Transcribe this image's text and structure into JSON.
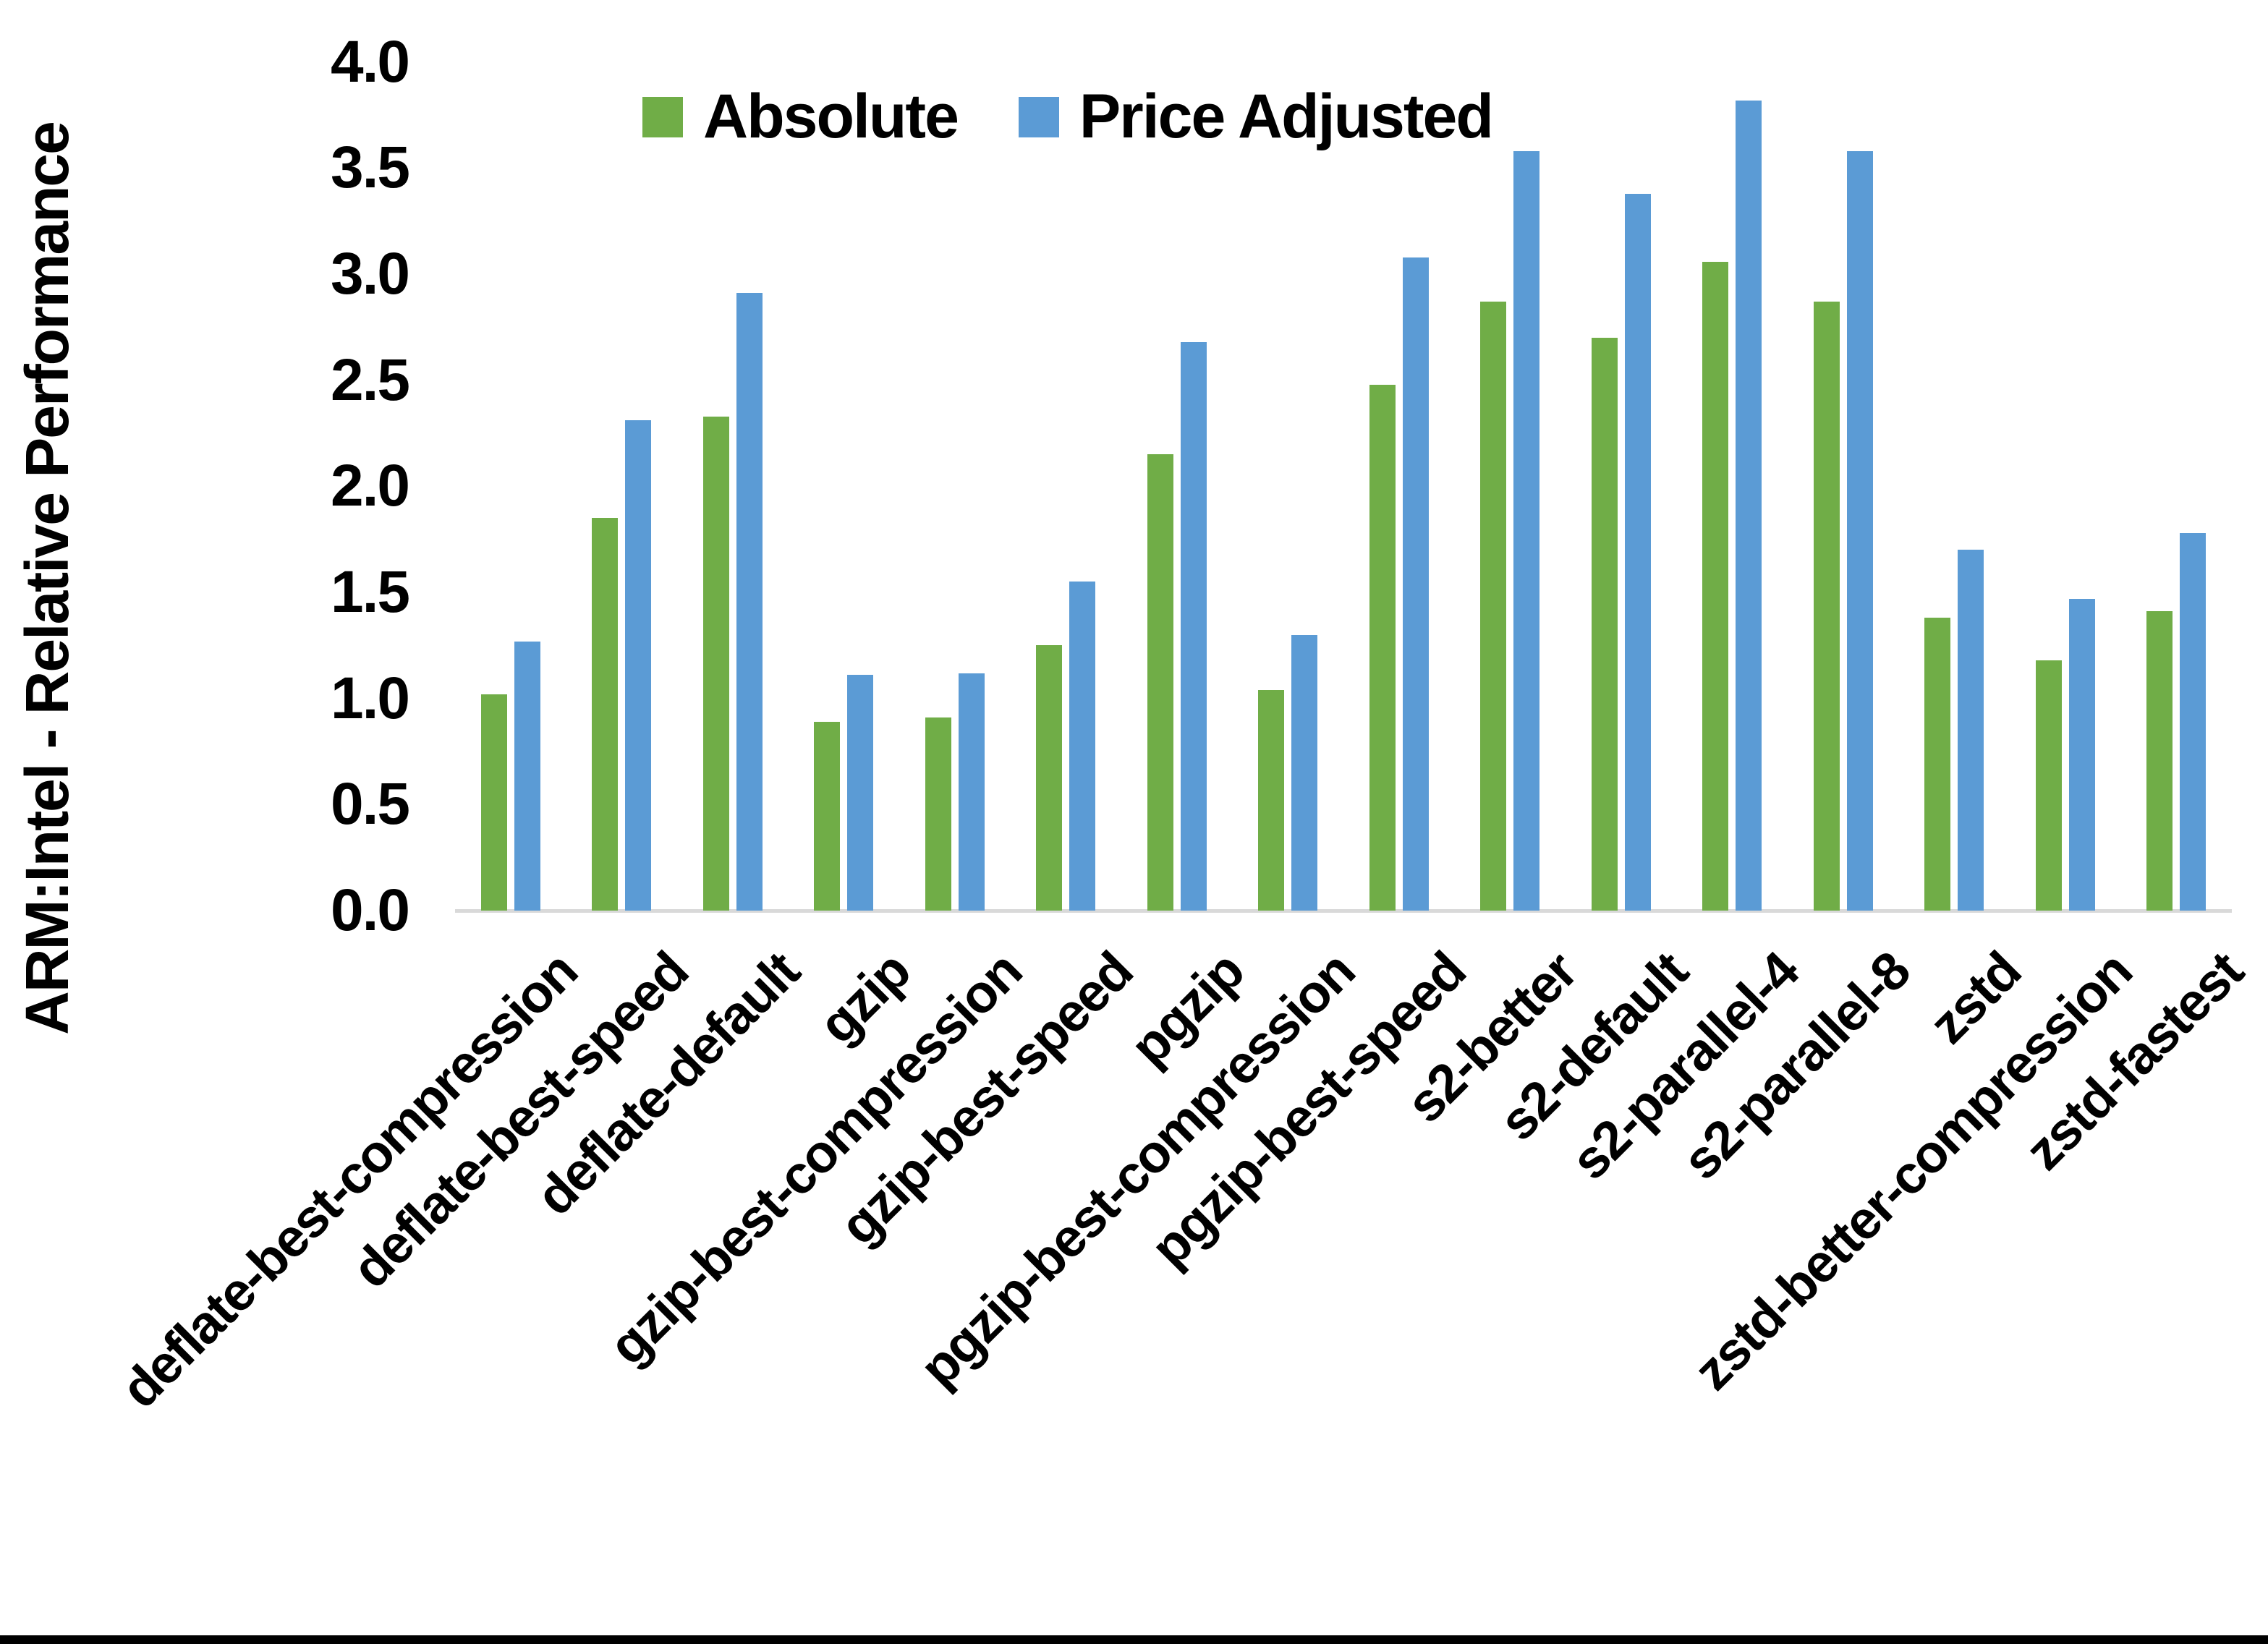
{
  "chart_data": {
    "type": "bar",
    "title": "",
    "xlabel": "",
    "ylabel": "ARM:Intel - Relative Performance",
    "legend_position": "top",
    "grid": "off",
    "ylim": [
      0.0,
      4.0
    ],
    "y_tick_step": 0.5,
    "y_ticks": [
      "0.0",
      "0.5",
      "1.0",
      "1.5",
      "2.0",
      "2.5",
      "3.0",
      "3.5",
      "4.0"
    ],
    "categories": [
      "deflate-best-compression",
      "deflate-best-speed",
      "deflate-default",
      "gzip",
      "gzip-best-compression",
      "gzip-best-speed",
      "pgzip",
      "pgzip-best-compression",
      "pgzip-best-speed",
      "s2-better",
      "s2-default",
      "s2-parallel-4",
      "s2-parallel-8",
      "zstd",
      "zstd-better-compression",
      "zstd-fastest"
    ],
    "series": [
      {
        "name": "Absolute",
        "color": "#70AD47",
        "values": [
          1.02,
          1.85,
          2.33,
          0.89,
          0.91,
          1.25,
          2.15,
          1.04,
          2.48,
          2.87,
          2.7,
          3.06,
          2.87,
          1.38,
          1.18,
          1.41
        ]
      },
      {
        "name": "Price Adjusted",
        "color": "#5B9BD5",
        "values": [
          1.27,
          2.31,
          2.91,
          1.11,
          1.12,
          1.55,
          2.68,
          1.3,
          3.08,
          3.58,
          3.38,
          3.82,
          3.58,
          1.7,
          1.47,
          1.78
        ]
      }
    ]
  },
  "colors": {
    "background": "#FFFFFF",
    "axis_line": "#D9D9D9",
    "text": "#000000",
    "bottom_border": "#000000"
  }
}
